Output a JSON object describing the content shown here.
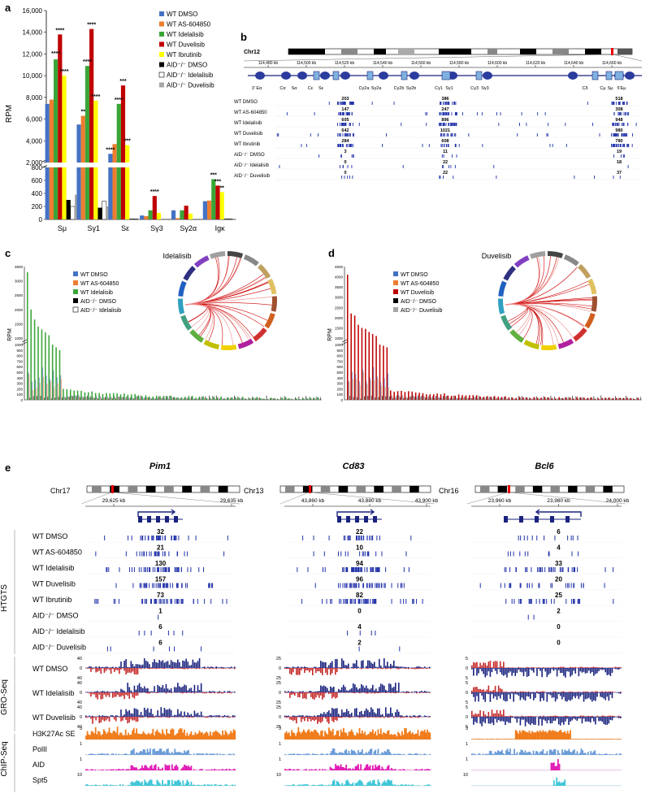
{
  "panels": {
    "a": "a",
    "b": "b",
    "c": "c",
    "d": "d",
    "e": "e"
  },
  "panel_a": {
    "ylabel": "RPM",
    "categories": [
      "Sμ",
      "Sγ1",
      "Sε",
      "Sγ3",
      "Sγ2α",
      "Igκ"
    ],
    "yticks_upper": [
      "16,000",
      "14,000",
      "12,000",
      "10,000",
      "8,000",
      "6,000",
      "4,000",
      "2,000"
    ],
    "yticks_lower": [
      "800",
      "600",
      "400",
      "200",
      "0"
    ],
    "legend": [
      "WT DMSO",
      "WT AS-604850",
      "WT Idelalisib",
      "WT Duvelisib",
      "WT Ibrutinib",
      "AID⁻/⁻ DMSO",
      "AID⁻/⁻ Idelalisib",
      "AID⁻/⁻ Duvelisib"
    ],
    "colors": [
      "#4472C4",
      "#ED7D31",
      "#3AA537",
      "#C00000",
      "#FFFF00",
      "#000000",
      "#FFFFFF",
      "#A6A6A6"
    ],
    "stars": [
      "****",
      "****",
      "****",
      "****",
      "**",
      "****",
      "****",
      "****",
      "***",
      "****",
      "***",
      "****",
      "***",
      "***",
      "**"
    ]
  },
  "chart_data": [
    {
      "type": "bar",
      "ylabel": "RPM",
      "categories": [
        "Sμ",
        "Sγ1",
        "Sε",
        "Sγ3",
        "Sγ2α",
        "Igκ"
      ],
      "series": [
        {
          "name": "WT DMSO",
          "values": [
            7400,
            5500,
            2800,
            60,
            140,
            280
          ]
        },
        {
          "name": "WT AS-604850",
          "values": [
            7800,
            6300,
            3700,
            50,
            20,
            290
          ]
        },
        {
          "name": "WT Idelalisib",
          "values": [
            11500,
            10900,
            7400,
            140,
            140,
            620
          ]
        },
        {
          "name": "WT Duvelisib",
          "values": [
            13800,
            14300,
            9100,
            360,
            210,
            520
          ]
        },
        {
          "name": "WT Ibrutinib",
          "values": [
            10000,
            7700,
            3600,
            100,
            90,
            420
          ]
        },
        {
          "name": "AID⁻/⁻ DMSO",
          "values": [
            300,
            180,
            10,
            0,
            0,
            10
          ]
        },
        {
          "name": "AID⁻/⁻ Idelalisib",
          "values": [
            200,
            280,
            10,
            0,
            0,
            10
          ]
        },
        {
          "name": "AID⁻/⁻ Duvelisib",
          "values": [
            380,
            200,
            10,
            0,
            0,
            10
          ]
        }
      ]
    }
  ],
  "panel_b": {
    "chr": "Chr12",
    "coords": [
      "114,480 kb",
      "114,500 kb",
      "114,520 kb",
      "114,540 kb",
      "114,560 kb",
      "114,580 kb",
      "114,600 kb",
      "114,620 kb",
      "114,640 kb",
      "114,660 kb"
    ],
    "genes": [
      "3' Eα",
      "Cα",
      "Sα",
      "Cε",
      "Sε",
      "Cγ2a",
      "Sγ2a",
      "Cγ2b",
      "Sγ2b",
      "Cγ1",
      "Sγ1",
      "Cγ3",
      "Sγ3",
      "Cδ",
      "Cμ",
      "Sμ",
      "5'Eμ"
    ],
    "rows": [
      {
        "label": "WT DMSO",
        "n": [
          "203",
          "386",
          "518"
        ]
      },
      {
        "label": "WT AS-604850",
        "n": [
          "147",
          "247",
          "308"
        ]
      },
      {
        "label": "WT Idelalisib",
        "n": [
          "605",
          "896",
          "948"
        ]
      },
      {
        "label": "WT Duvelisib",
        "n": [
          "642",
          "1021",
          "980"
        ]
      },
      {
        "label": "WT Ibrutinib",
        "n": [
          "284",
          "608",
          "780"
        ]
      },
      {
        "label": "AID⁻/⁻ DMSO",
        "n": [
          "3",
          "11",
          "19"
        ]
      },
      {
        "label": "AID⁻/⁻ Idelalisib",
        "n": [
          "0",
          "22",
          "18"
        ]
      },
      {
        "label": "AID⁻/⁻ Duvelisib",
        "n": [
          "0",
          "22",
          "37"
        ]
      }
    ]
  },
  "panel_c": {
    "title": "Idelalisib",
    "ylabel": "RPM",
    "yticks": [
      "3500",
      "3000",
      "2500",
      "2000",
      "1500",
      "1000",
      "1000",
      "900",
      "800",
      "700",
      "600",
      "500",
      "400",
      "300",
      "200",
      "100",
      "0"
    ],
    "legend": [
      "WT DMSO",
      "WT AS-604850",
      "WT Idelalisib",
      "AID⁻/⁻ DMSO",
      "AID⁻/⁻ Idelalisib"
    ]
  },
  "panel_d": {
    "title": "Duvelisib",
    "ylabel": "RPM",
    "yticks": [
      "4500",
      "4000",
      "3500",
      "3000",
      "2500",
      "2000",
      "1500",
      "1000",
      "1000",
      "900",
      "800",
      "700",
      "600",
      "500",
      "400",
      "300",
      "200",
      "100",
      "0"
    ],
    "legend": [
      "WT DMSO",
      "WT AS-604850",
      "WT Duvelisib",
      "AID⁻/⁻ DMSO",
      "AID⁻/⁻ Duvelisib"
    ]
  },
  "panel_e": {
    "genes": [
      "Pim1",
      "Cd83",
      "Bcl6"
    ],
    "chrs": [
      "Chr17",
      "Chr13",
      "Chr16"
    ],
    "coords": [
      [
        "29,625 kb",
        "29,635 kb"
      ],
      [
        "43,860 kb",
        "43,880 kb",
        "43,900 kb"
      ],
      [
        "23,960 kb",
        "23,980 kb",
        "24,000 kb"
      ]
    ],
    "htgts_label": "HTGTS",
    "htgts_rows": [
      "WT DMSO",
      "WT AS-604850",
      "WT Idelalisib",
      "WT Duvelisib",
      "WT Ibrutinib",
      "AID⁻/⁻ DMSO",
      "AID⁻/⁻ Idelalisib",
      "AID⁻/⁻ Duvelisib"
    ],
    "counts": [
      [
        "32",
        "21",
        "130",
        "157",
        "73",
        "1",
        "6",
        "6"
      ],
      [
        "22",
        "10",
        "94",
        "96",
        "82",
        "0",
        "4",
        "2"
      ],
      [
        "6",
        "4",
        "33",
        "20",
        "25",
        "2",
        "0",
        "0"
      ]
    ],
    "gro_label": "GRO-Seq",
    "gro_rows": [
      "WT DMSO",
      "WT Idelalisib",
      "WT Duvelisib"
    ],
    "gro_ticks": [
      [
        "40",
        "0",
        "40"
      ],
      [
        "25",
        "0",
        "25"
      ],
      [
        "5",
        "0",
        "5"
      ]
    ],
    "chip_label": "ChIP-Seq",
    "chip_rows": [
      "H3K27Ac SE",
      "PolII",
      "AID",
      "Spt5"
    ],
    "chip_ticks": [
      [
        "3",
        "1",
        "1",
        "10"
      ],
      [
        "3",
        "1",
        "1",
        "10"
      ],
      [
        "3",
        "1",
        "1",
        "10"
      ]
    ]
  }
}
